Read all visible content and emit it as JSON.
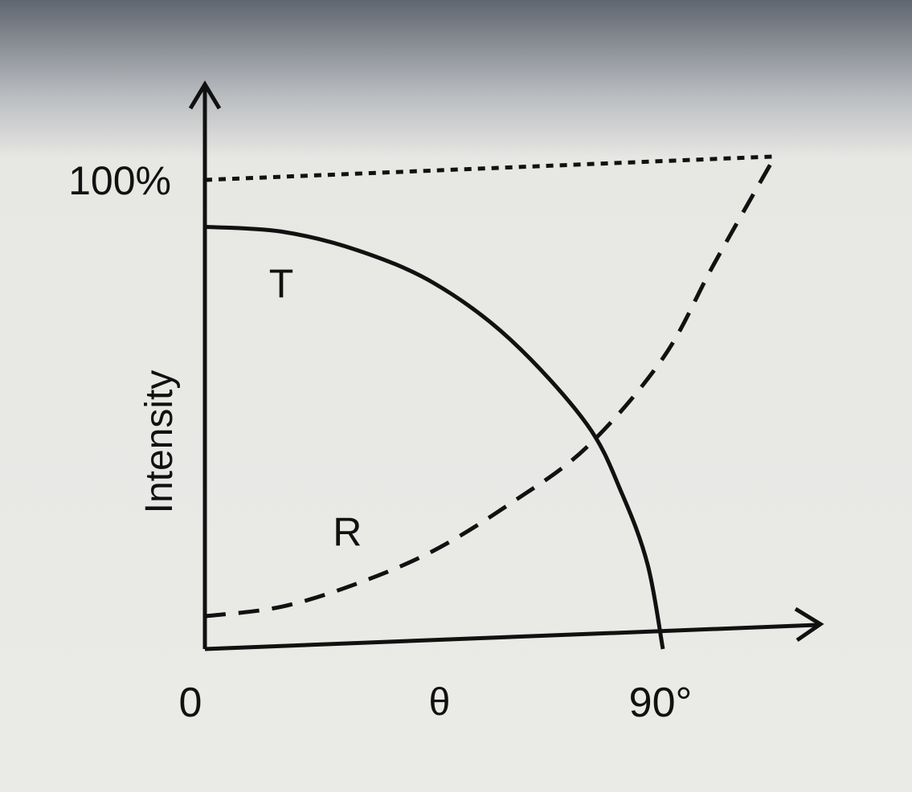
{
  "chart_data": {
    "type": "line",
    "title": "",
    "xlabel": "θ",
    "ylabel": "Intensity",
    "x_ticks": [
      {
        "label": "0",
        "value": 0
      },
      {
        "label": "90°",
        "value": 90
      }
    ],
    "y_ticks": [
      {
        "label": "100%",
        "value": 100
      }
    ],
    "xlim": [
      0,
      120
    ],
    "ylim": [
      0,
      130
    ],
    "reference_line": {
      "style": "dotted",
      "from": [
        0,
        100
      ],
      "to": [
        112,
        105
      ]
    },
    "series": [
      {
        "name": "T",
        "style": "solid",
        "x": [
          0,
          15,
          30,
          45,
          60,
          75,
          82,
          87,
          90
        ],
        "y": [
          90,
          89,
          85,
          78,
          66,
          48,
          33,
          18,
          0
        ]
      },
      {
        "name": "R",
        "style": "dashed",
        "x": [
          0,
          15,
          30,
          45,
          60,
          75,
          90,
          100,
          112
        ],
        "y": [
          7,
          9,
          14,
          21,
          31,
          43,
          62,
          82,
          105
        ]
      }
    ],
    "grid": false,
    "legend": "none"
  },
  "colors": {
    "ink": "#111111",
    "paper": "#e9e9e6"
  }
}
